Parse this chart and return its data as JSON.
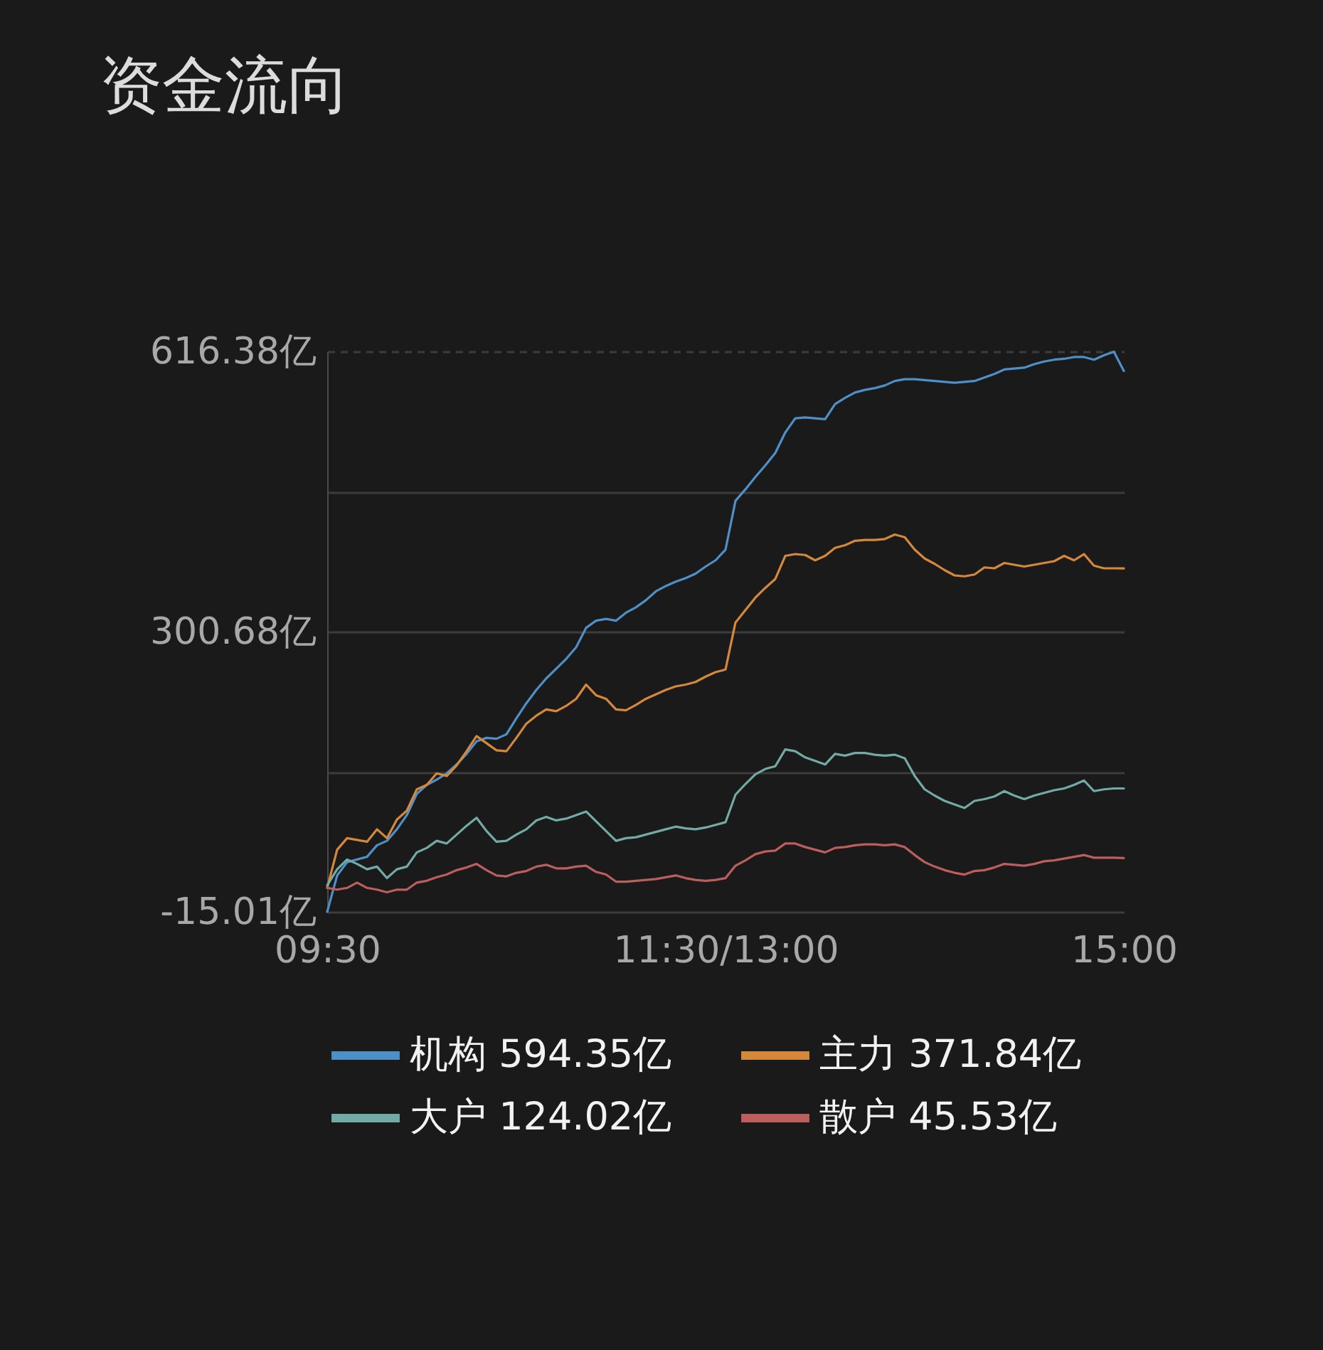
{
  "chart_data": {
    "type": "line",
    "title": "资金流向",
    "categories": [
      "09:30",
      null,
      null,
      null,
      null,
      null,
      null,
      null,
      null,
      null,
      null,
      null,
      null,
      null,
      null,
      null,
      null,
      null,
      null,
      null,
      null,
      null,
      null,
      null,
      null,
      null,
      null,
      null,
      null,
      null,
      null,
      null,
      null,
      null,
      null,
      null,
      null,
      null,
      null,
      null,
      "11:30/13:00",
      null,
      null,
      null,
      null,
      null,
      null,
      null,
      null,
      null,
      null,
      null,
      null,
      null,
      null,
      null,
      null,
      null,
      null,
      null,
      null,
      null,
      null,
      null,
      null,
      null,
      null,
      null,
      null,
      null,
      null,
      null,
      null,
      null,
      null,
      null,
      null,
      null,
      null,
      null,
      "15:00"
    ],
    "ylim": [
      -15.01,
      616.38
    ],
    "yticks": [
      {
        "value": -15.01,
        "label": "-15.01亿"
      },
      {
        "value": 142.83,
        "label": null
      },
      {
        "value": 300.68,
        "label": "300.68亿"
      },
      {
        "value": 458.53,
        "label": null
      },
      {
        "value": 616.38,
        "label": "616.38亿"
      }
    ],
    "grid": "y",
    "legend": "bottom",
    "series": [
      {
        "name": "机构 594.35亿",
        "color": "#4f8fc8",
        "values": [
          -15,
          26,
          41,
          44,
          47,
          60,
          65,
          78,
          94,
          118,
          128,
          134,
          141,
          151,
          163,
          177,
          181,
          180,
          185,
          203,
          220,
          235,
          248,
          259,
          270,
          283,
          305,
          313,
          315,
          313,
          322,
          328,
          336,
          346,
          352,
          357,
          361,
          366,
          374,
          381,
          393,
          448,
          461,
          475,
          488,
          502,
          525,
          541,
          542,
          541,
          540,
          557,
          564,
          570,
          573,
          575,
          578,
          583,
          585,
          585,
          584,
          583,
          582,
          581,
          582,
          583,
          587,
          591,
          596,
          597,
          598,
          602,
          605,
          607,
          608,
          610,
          610,
          607,
          612,
          616,
          594.35
        ]
      },
      {
        "name": "主力 371.84亿",
        "color": "#d5883c",
        "values": [
          12,
          55,
          68,
          66,
          64,
          78,
          68,
          89,
          99,
          123,
          128,
          141,
          138,
          150,
          166,
          183,
          175,
          167,
          166,
          181,
          197,
          206,
          213,
          211,
          217,
          225,
          241,
          229,
          225,
          213,
          212,
          218,
          225,
          230,
          235,
          239,
          241,
          244,
          250,
          255,
          258,
          311,
          325,
          339,
          350,
          360,
          386,
          388,
          387,
          381,
          386,
          395,
          398,
          403,
          404,
          404,
          405,
          410,
          407,
          393,
          383,
          377,
          370,
          364,
          363,
          365,
          373,
          372,
          378,
          376,
          374,
          376,
          378,
          380,
          386,
          381,
          388,
          375,
          372,
          372,
          371.84
        ]
      },
      {
        "name": "大户 124.02亿",
        "color": "#72aaa6",
        "values": [
          15,
          33,
          44,
          39,
          33,
          36,
          23,
          33,
          36,
          52,
          57,
          65,
          62,
          72,
          82,
          91,
          76,
          64,
          65,
          72,
          78,
          88,
          92,
          88,
          90,
          94,
          98,
          87,
          76,
          65,
          68,
          69,
          72,
          75,
          78,
          81,
          79,
          78,
          80,
          83,
          86,
          117,
          129,
          140,
          146,
          149,
          168,
          166,
          159,
          155,
          151,
          163,
          161,
          164,
          164,
          162,
          161,
          162,
          158,
          138,
          123,
          116,
          110,
          106,
          102,
          110,
          112,
          115,
          121,
          116,
          112,
          116,
          119,
          122,
          124,
          128,
          133,
          121,
          123,
          124,
          124.02
        ]
      },
      {
        "name": "散户 45.53亿",
        "color": "#bc5e5c",
        "values": [
          12,
          10,
          12,
          18,
          12,
          10,
          7,
          10,
          10,
          18,
          20,
          24,
          27,
          32,
          35,
          39,
          32,
          26,
          25,
          29,
          31,
          36,
          38,
          34,
          34,
          36,
          37,
          30,
          27,
          19,
          19,
          20,
          21,
          22,
          24,
          26,
          23,
          21,
          20,
          21,
          23,
          37,
          43,
          50,
          53,
          54,
          62,
          62,
          58,
          55,
          52,
          57,
          58,
          60,
          61,
          61,
          60,
          61,
          58,
          49,
          41,
          36,
          32,
          29,
          27,
          31,
          32,
          35,
          39,
          38,
          37,
          39,
          42,
          43,
          45,
          47,
          49,
          46,
          46,
          46,
          45.53
        ]
      }
    ]
  }
}
